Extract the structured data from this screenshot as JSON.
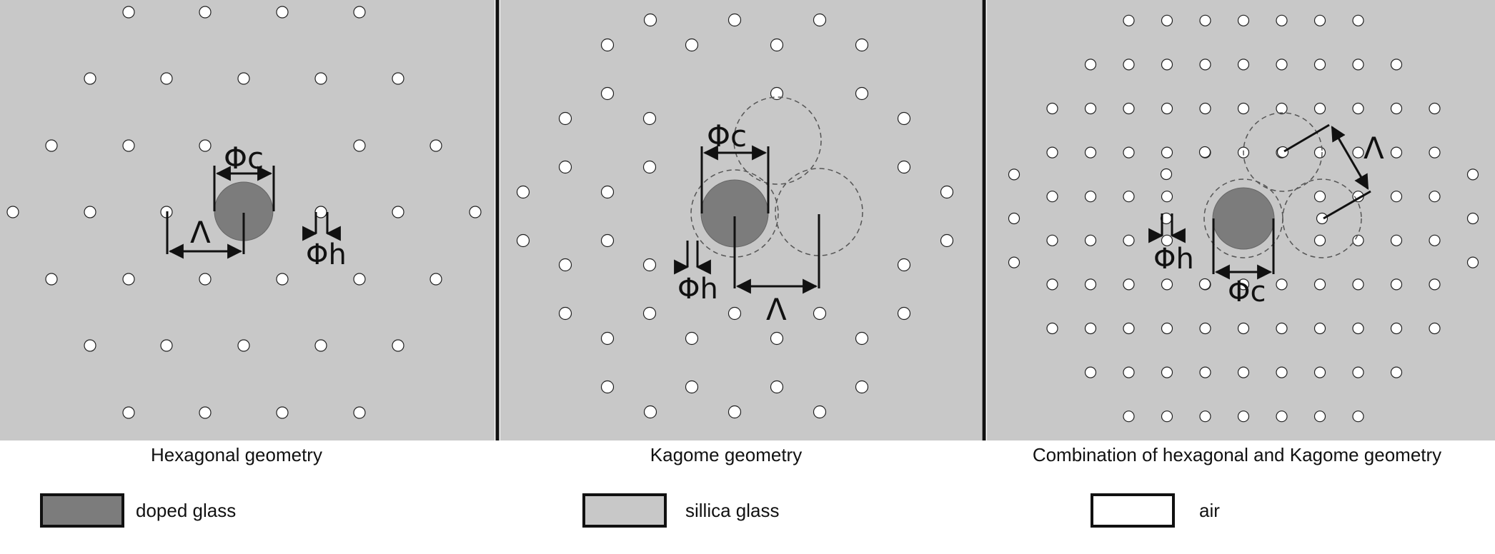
{
  "colors": {
    "silica": "#c8c8c8",
    "doped": "#7c7c7c",
    "air": "#ffffff",
    "line": "#111111"
  },
  "panels": [
    {
      "caption": "Hexagonal geometry",
      "labels": {
        "phi_c": "Φc",
        "phi_h": "Φh",
        "lambda": "Λ"
      }
    },
    {
      "caption": "Kagome geometry",
      "labels": {
        "phi_c": "Φc",
        "phi_h": "Φh",
        "lambda": "Λ"
      }
    },
    {
      "caption": "Combination of hexagonal and Kagome geometry",
      "labels": {
        "phi_c": "Φc",
        "phi_h": "Φh",
        "lambda": "Λ"
      }
    }
  ],
  "legend": [
    {
      "label": "doped glass",
      "color": "#7c7c7c"
    },
    {
      "label": "sillica glass",
      "color": "#c8c8c8"
    },
    {
      "label": "air",
      "color": "#ffffff"
    }
  ]
}
